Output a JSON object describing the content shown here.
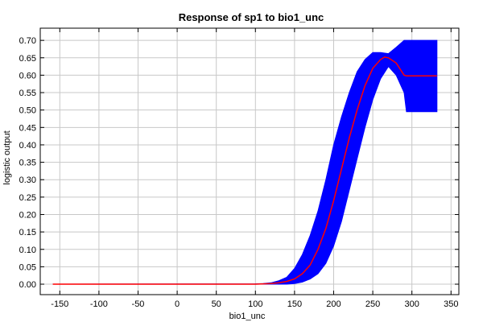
{
  "chart_data": {
    "type": "area",
    "title": "Response of sp1 to bio1_unc",
    "xlabel": "bio1_unc",
    "ylabel": "logistic output",
    "xlim": [
      -175,
      360
    ],
    "ylim": [
      -0.03,
      0.735
    ],
    "x_ticks": [
      -150,
      -100,
      -50,
      0,
      50,
      100,
      150,
      200,
      250,
      300,
      350
    ],
    "y_ticks": [
      0.0,
      0.05,
      0.1,
      0.15,
      0.2,
      0.25,
      0.3,
      0.35,
      0.4,
      0.45,
      0.5,
      0.55,
      0.6,
      0.65,
      0.7
    ],
    "grid": true,
    "colors": {
      "band": "#0000ff",
      "mean": "#ff0000"
    },
    "series": [
      {
        "values": [
          [
            -159,
            0.0
          ],
          [
            100,
            0.0
          ],
          [
            110,
            0.001
          ],
          [
            120,
            0.002
          ],
          [
            130,
            0.004
          ],
          [
            140,
            0.008
          ],
          [
            150,
            0.015
          ],
          [
            160,
            0.03
          ],
          [
            170,
            0.055
          ],
          [
            180,
            0.1
          ],
          [
            190,
            0.16
          ],
          [
            200,
            0.24
          ],
          [
            210,
            0.33
          ],
          [
            220,
            0.42
          ],
          [
            230,
            0.5
          ],
          [
            240,
            0.57
          ],
          [
            250,
            0.62
          ],
          [
            260,
            0.645
          ],
          [
            265,
            0.652
          ],
          [
            270,
            0.65
          ],
          [
            280,
            0.635
          ],
          [
            290,
            0.6
          ],
          [
            293,
            0.598
          ],
          [
            332,
            0.598
          ]
        ]
      },
      {
        "upper": [
          [
            -159,
            0.0
          ],
          [
            100,
            0.001
          ],
          [
            110,
            0.002
          ],
          [
            120,
            0.004
          ],
          [
            130,
            0.01
          ],
          [
            140,
            0.02
          ],
          [
            150,
            0.045
          ],
          [
            160,
            0.085
          ],
          [
            170,
            0.14
          ],
          [
            180,
            0.21
          ],
          [
            190,
            0.3
          ],
          [
            200,
            0.4
          ],
          [
            210,
            0.48
          ],
          [
            220,
            0.55
          ],
          [
            230,
            0.61
          ],
          [
            240,
            0.645
          ],
          [
            250,
            0.665
          ],
          [
            260,
            0.665
          ],
          [
            270,
            0.662
          ],
          [
            280,
            0.68
          ],
          [
            290,
            0.7
          ],
          [
            332,
            0.7
          ]
        ],
        "lower": [
          [
            -159,
            0.0
          ],
          [
            120,
            0.0
          ],
          [
            140,
            0.0
          ],
          [
            150,
            0.002
          ],
          [
            160,
            0.006
          ],
          [
            170,
            0.015
          ],
          [
            180,
            0.03
          ],
          [
            190,
            0.06
          ],
          [
            200,
            0.11
          ],
          [
            210,
            0.18
          ],
          [
            220,
            0.27
          ],
          [
            230,
            0.36
          ],
          [
            240,
            0.45
          ],
          [
            250,
            0.53
          ],
          [
            260,
            0.59
          ],
          [
            270,
            0.625
          ],
          [
            280,
            0.6
          ],
          [
            290,
            0.55
          ],
          [
            293,
            0.495
          ],
          [
            332,
            0.495
          ]
        ]
      }
    ]
  }
}
